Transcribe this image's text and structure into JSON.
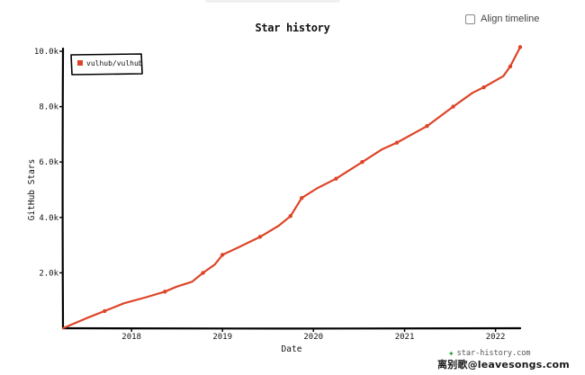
{
  "header": {
    "align_timeline_label": "Align timeline"
  },
  "watermark": {
    "site": "star-history.com",
    "icon": "star-icon",
    "overlay_credit": "离别歌@leavesongs.com"
  },
  "colors": {
    "series": "#dd4528",
    "axis": "#000000"
  },
  "chart_data": {
    "type": "line",
    "title": "Star history",
    "xlabel": "Date",
    "ylabel": "GitHub Stars",
    "x_ticks": [
      "2018",
      "2019",
      "2020",
      "2021",
      "2022"
    ],
    "y_ticks": [
      "2.0k",
      "4.0k",
      "6.0k",
      "8.0k",
      "10.0k"
    ],
    "ylim": [
      0,
      10000
    ],
    "xlim": [
      "2017-04-01",
      "2022-04-10"
    ],
    "legend_position": "top-left",
    "grid": false,
    "series": [
      {
        "name": "vulhub/vulhub",
        "points": [
          {
            "x": "2017-04-01",
            "y": 0
          },
          {
            "x": "2017-07-01",
            "y": 350
          },
          {
            "x": "2017-09-15",
            "y": 620
          },
          {
            "x": "2017-12-01",
            "y": 900
          },
          {
            "x": "2018-03-01",
            "y": 1120
          },
          {
            "x": "2018-05-15",
            "y": 1320
          },
          {
            "x": "2018-07-01",
            "y": 1500
          },
          {
            "x": "2018-09-01",
            "y": 1680
          },
          {
            "x": "2018-10-15",
            "y": 2000
          },
          {
            "x": "2018-12-01",
            "y": 2300
          },
          {
            "x": "2019-01-01",
            "y": 2650
          },
          {
            "x": "2019-03-01",
            "y": 2900
          },
          {
            "x": "2019-06-01",
            "y": 3300
          },
          {
            "x": "2019-08-15",
            "y": 3700
          },
          {
            "x": "2019-10-01",
            "y": 4050
          },
          {
            "x": "2019-11-15",
            "y": 4700
          },
          {
            "x": "2020-01-15",
            "y": 5050
          },
          {
            "x": "2020-04-01",
            "y": 5400
          },
          {
            "x": "2020-06-01",
            "y": 5750
          },
          {
            "x": "2020-07-15",
            "y": 6000
          },
          {
            "x": "2020-10-01",
            "y": 6450
          },
          {
            "x": "2020-12-01",
            "y": 6700
          },
          {
            "x": "2021-04-01",
            "y": 7300
          },
          {
            "x": "2021-07-15",
            "y": 8000
          },
          {
            "x": "2021-10-01",
            "y": 8500
          },
          {
            "x": "2021-11-15",
            "y": 8700
          },
          {
            "x": "2022-02-01",
            "y": 9100
          },
          {
            "x": "2022-03-01",
            "y": 9450
          },
          {
            "x": "2022-04-10",
            "y": 10150
          }
        ],
        "markers": [
          {
            "x": "2017-09-15",
            "y": 620
          },
          {
            "x": "2018-05-15",
            "y": 1320
          },
          {
            "x": "2018-10-15",
            "y": 2000
          },
          {
            "x": "2019-01-01",
            "y": 2650
          },
          {
            "x": "2019-06-01",
            "y": 3300
          },
          {
            "x": "2019-10-01",
            "y": 4050
          },
          {
            "x": "2019-11-15",
            "y": 4700
          },
          {
            "x": "2020-04-01",
            "y": 5400
          },
          {
            "x": "2020-07-15",
            "y": 6000
          },
          {
            "x": "2020-12-01",
            "y": 6700
          },
          {
            "x": "2021-04-01",
            "y": 7300
          },
          {
            "x": "2021-07-15",
            "y": 8000
          },
          {
            "x": "2021-11-15",
            "y": 8700
          },
          {
            "x": "2022-03-01",
            "y": 9450
          },
          {
            "x": "2022-04-10",
            "y": 10150
          }
        ]
      }
    ]
  }
}
